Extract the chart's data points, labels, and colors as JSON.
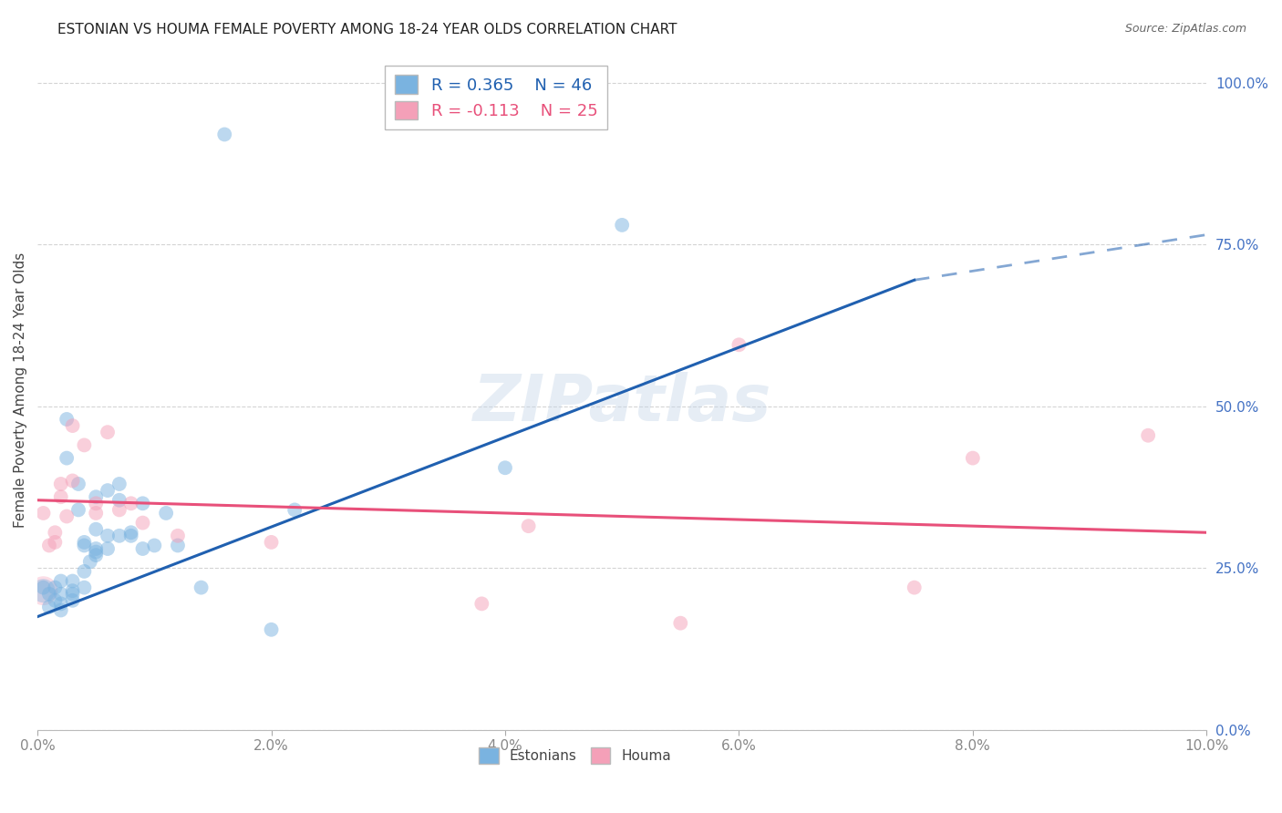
{
  "title": "ESTONIAN VS HOUMA FEMALE POVERTY AMONG 18-24 YEAR OLDS CORRELATION CHART",
  "source": "Source: ZipAtlas.com",
  "ylabel": "Female Poverty Among 18-24 Year Olds",
  "xlim": [
    0.0,
    0.1
  ],
  "ylim": [
    0.0,
    1.05
  ],
  "xticks": [
    0.0,
    0.02,
    0.04,
    0.06,
    0.08,
    0.1
  ],
  "yticks_right": [
    0.0,
    0.25,
    0.5,
    0.75,
    1.0
  ],
  "legend_r1": "R = 0.365",
  "legend_n1": "N = 46",
  "legend_r2": "R = -0.113",
  "legend_n2": "N = 25",
  "color_estonian": "#7ab3e0",
  "color_houma": "#f4a0b8",
  "color_line_estonian": "#2060b0",
  "color_line_houma": "#e8507a",
  "color_title": "#222222",
  "color_source": "#666666",
  "color_right_labels": "#4472c4",
  "color_xtick": "#888888",
  "background": "#ffffff",
  "grid_color": "#d0d0d0",
  "estonian_line_x0": 0.0,
  "estonian_line_y0": 0.175,
  "estonian_line_x1": 0.075,
  "estonian_line_y1": 0.695,
  "estonian_line_dash_x1": 0.1,
  "estonian_line_dash_y1": 0.765,
  "houma_line_x0": 0.0,
  "houma_line_y0": 0.355,
  "houma_line_x1": 0.1,
  "houma_line_y1": 0.305,
  "estonian_x": [
    0.0005,
    0.001,
    0.001,
    0.0015,
    0.0015,
    0.002,
    0.002,
    0.002,
    0.002,
    0.0025,
    0.0025,
    0.003,
    0.003,
    0.003,
    0.003,
    0.0035,
    0.0035,
    0.004,
    0.004,
    0.004,
    0.004,
    0.0045,
    0.005,
    0.005,
    0.005,
    0.005,
    0.005,
    0.006,
    0.006,
    0.006,
    0.007,
    0.007,
    0.007,
    0.008,
    0.008,
    0.009,
    0.009,
    0.01,
    0.011,
    0.012,
    0.014,
    0.016,
    0.02,
    0.022,
    0.04,
    0.05
  ],
  "estonian_y": [
    0.22,
    0.21,
    0.19,
    0.2,
    0.22,
    0.195,
    0.21,
    0.23,
    0.185,
    0.42,
    0.48,
    0.2,
    0.215,
    0.21,
    0.23,
    0.38,
    0.34,
    0.22,
    0.285,
    0.29,
    0.245,
    0.26,
    0.31,
    0.36,
    0.28,
    0.275,
    0.27,
    0.3,
    0.37,
    0.28,
    0.355,
    0.38,
    0.3,
    0.3,
    0.305,
    0.35,
    0.28,
    0.285,
    0.335,
    0.285,
    0.22,
    0.92,
    0.155,
    0.34,
    0.405,
    0.78
  ],
  "houma_x": [
    0.0005,
    0.001,
    0.0015,
    0.0015,
    0.002,
    0.002,
    0.0025,
    0.003,
    0.003,
    0.004,
    0.005,
    0.005,
    0.006,
    0.007,
    0.008,
    0.009,
    0.012,
    0.02,
    0.038,
    0.042,
    0.055,
    0.06,
    0.075,
    0.08,
    0.095
  ],
  "houma_y": [
    0.335,
    0.285,
    0.29,
    0.305,
    0.36,
    0.38,
    0.33,
    0.47,
    0.385,
    0.44,
    0.35,
    0.335,
    0.46,
    0.34,
    0.35,
    0.32,
    0.3,
    0.29,
    0.195,
    0.315,
    0.165,
    0.595,
    0.22,
    0.42,
    0.455
  ],
  "large_estonian_x": [
    0.0005
  ],
  "large_estonian_y": [
    0.22
  ],
  "marker_size": 130,
  "large_marker_size": 350,
  "alpha_scatter": 0.5
}
